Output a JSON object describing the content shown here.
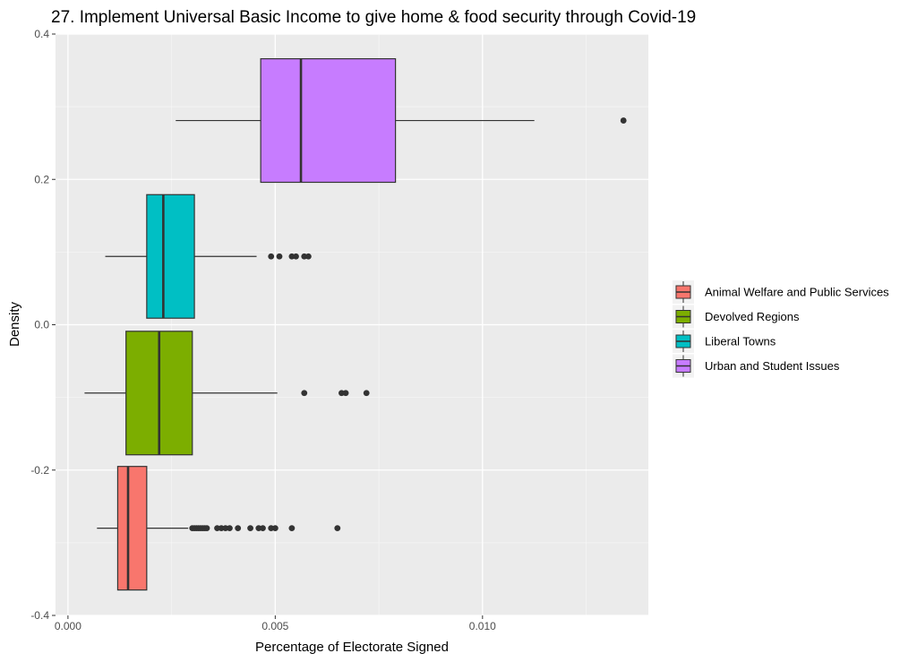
{
  "chart_data": {
    "type": "boxplot",
    "title": "27. Implement Universal Basic Income to give home & food security through Covid-19",
    "xlabel": "Percentage of Electorate Signed",
    "ylabel": "Density",
    "xlim": [
      -0.0003,
      0.014
    ],
    "ylim": [
      -0.4,
      0.4
    ],
    "x_ticks": [
      {
        "value": 0.0,
        "label": "0.000"
      },
      {
        "value": 0.005,
        "label": "0.005"
      },
      {
        "value": 0.01,
        "label": "0.010"
      }
    ],
    "y_ticks": [
      {
        "value": 0.4,
        "label": "0.4"
      },
      {
        "value": 0.2,
        "label": "0.2"
      },
      {
        "value": 0.0,
        "label": "0.0"
      },
      {
        "value": -0.2,
        "label": "-0.2"
      },
      {
        "value": -0.4,
        "label": "-0.4"
      }
    ],
    "grid": true,
    "legend_position": "right",
    "series": [
      {
        "name": "Animal Welfare and Public Services",
        "color": "#F8766D",
        "y_center": -0.28,
        "y_half_height": 0.085,
        "whisker_low": 0.0007,
        "q1": 0.0012,
        "median": 0.00145,
        "q3": 0.0019,
        "whisker_high": 0.0029,
        "outliers": [
          0.003,
          0.00305,
          0.0031,
          0.00315,
          0.0032,
          0.00325,
          0.0033,
          0.00335,
          0.0036,
          0.0037,
          0.0038,
          0.0039,
          0.0041,
          0.0044,
          0.0046,
          0.0047,
          0.0049,
          0.005,
          0.0054,
          0.0065
        ]
      },
      {
        "name": "Devolved Regions",
        "color": "#7CAE00",
        "y_center": -0.094,
        "y_half_height": 0.085,
        "whisker_low": 0.0004,
        "q1": 0.0014,
        "median": 0.0022,
        "q3": 0.003,
        "whisker_high": 0.00505,
        "outliers": [
          0.0057,
          0.0066,
          0.0067,
          0.0072
        ]
      },
      {
        "name": "Liberal Towns",
        "color": "#00BFC4",
        "y_center": 0.094,
        "y_half_height": 0.085,
        "whisker_low": 0.0009,
        "q1": 0.0019,
        "median": 0.0023,
        "q3": 0.00305,
        "whisker_high": 0.00455,
        "outliers": [
          0.0049,
          0.0051,
          0.0054,
          0.0055,
          0.0057,
          0.0058
        ]
      },
      {
        "name": "Urban and Student Issues",
        "color": "#C77CFF",
        "y_center": 0.281,
        "y_half_height": 0.085,
        "whisker_low": 0.0026,
        "q1": 0.00465,
        "median": 0.00562,
        "q3": 0.0079,
        "whisker_high": 0.01125,
        "outliers": [
          0.0134
        ]
      }
    ]
  }
}
